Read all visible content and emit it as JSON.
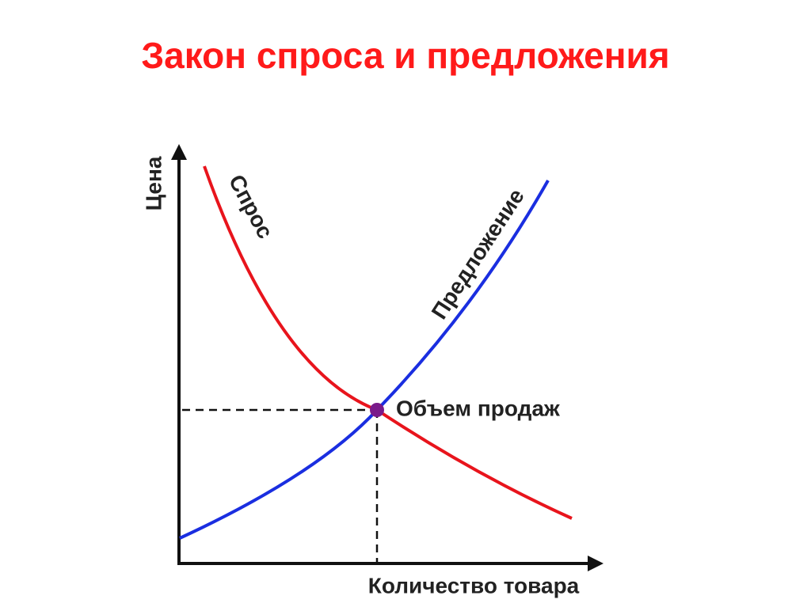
{
  "header": {
    "title": "Закон спроса и предложения"
  },
  "diagram": {
    "y_axis_label": "Цена",
    "x_axis_label": "Количество товара",
    "demand_label": "Спрос",
    "supply_label": "Предложение",
    "equilibrium_label": "Объем продаж"
  }
}
